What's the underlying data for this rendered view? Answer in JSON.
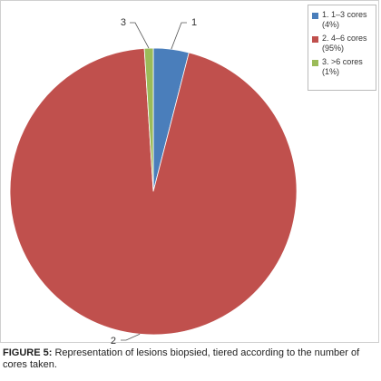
{
  "chart_data": {
    "type": "pie",
    "slices": [
      {
        "callout": "1",
        "legend": "1. 1–3 cores",
        "percent_label": "(4%)",
        "value": 4,
        "color": "#4a7ebb"
      },
      {
        "callout": "2",
        "legend": "2. 4–6 cores",
        "percent_label": "(95%)",
        "value": 95,
        "color": "#c0504d"
      },
      {
        "callout": "3",
        "legend": "3. >6 cores",
        "percent_label": "(1%)",
        "value": 1,
        "color": "#9bbb59"
      }
    ],
    "legend_position": "top-right"
  },
  "caption": {
    "label": "FIGURE 5:",
    "text": " Representation of lesions biopsied, tiered according to the number of cores taken."
  }
}
